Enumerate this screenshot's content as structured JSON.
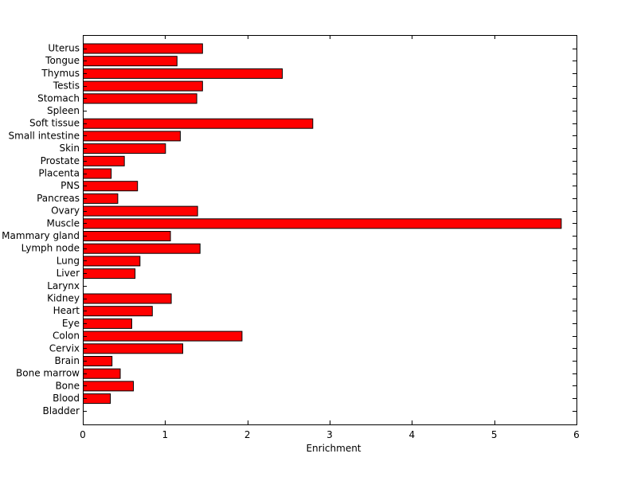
{
  "chart_data": {
    "type": "bar",
    "orientation": "horizontal",
    "categories": [
      "Uterus",
      "Tongue",
      "Thymus",
      "Testis",
      "Stomach",
      "Spleen",
      "Soft tissue",
      "Small intestine",
      "Skin",
      "Prostate",
      "Placenta",
      "PNS",
      "Pancreas",
      "Ovary",
      "Muscle",
      "Mammary gland",
      "Lymph node",
      "Lung",
      "Liver",
      "Larynx",
      "Kidney",
      "Heart",
      "Eye",
      "Colon",
      "Cervix",
      "Brain",
      "Bone marrow",
      "Bone",
      "Blood",
      "Bladder"
    ],
    "values": [
      1.45,
      1.14,
      2.42,
      1.45,
      1.38,
      0,
      2.79,
      1.18,
      1.0,
      0.5,
      0.34,
      0.66,
      0.42,
      1.39,
      5.81,
      1.06,
      1.42,
      0.69,
      0.63,
      0,
      1.07,
      0.84,
      0.59,
      1.93,
      1.21,
      0.35,
      0.45,
      0.61,
      0.33,
      0
    ],
    "xlabel": "Enrichment",
    "ylabel": "",
    "title": "",
    "xlim": [
      0,
      6
    ],
    "xticks": [
      0,
      1,
      2,
      3,
      4,
      5,
      6
    ],
    "bar_color": "#ff0000",
    "bar_edge_color": "#000000",
    "grid": false,
    "legend": "none"
  }
}
